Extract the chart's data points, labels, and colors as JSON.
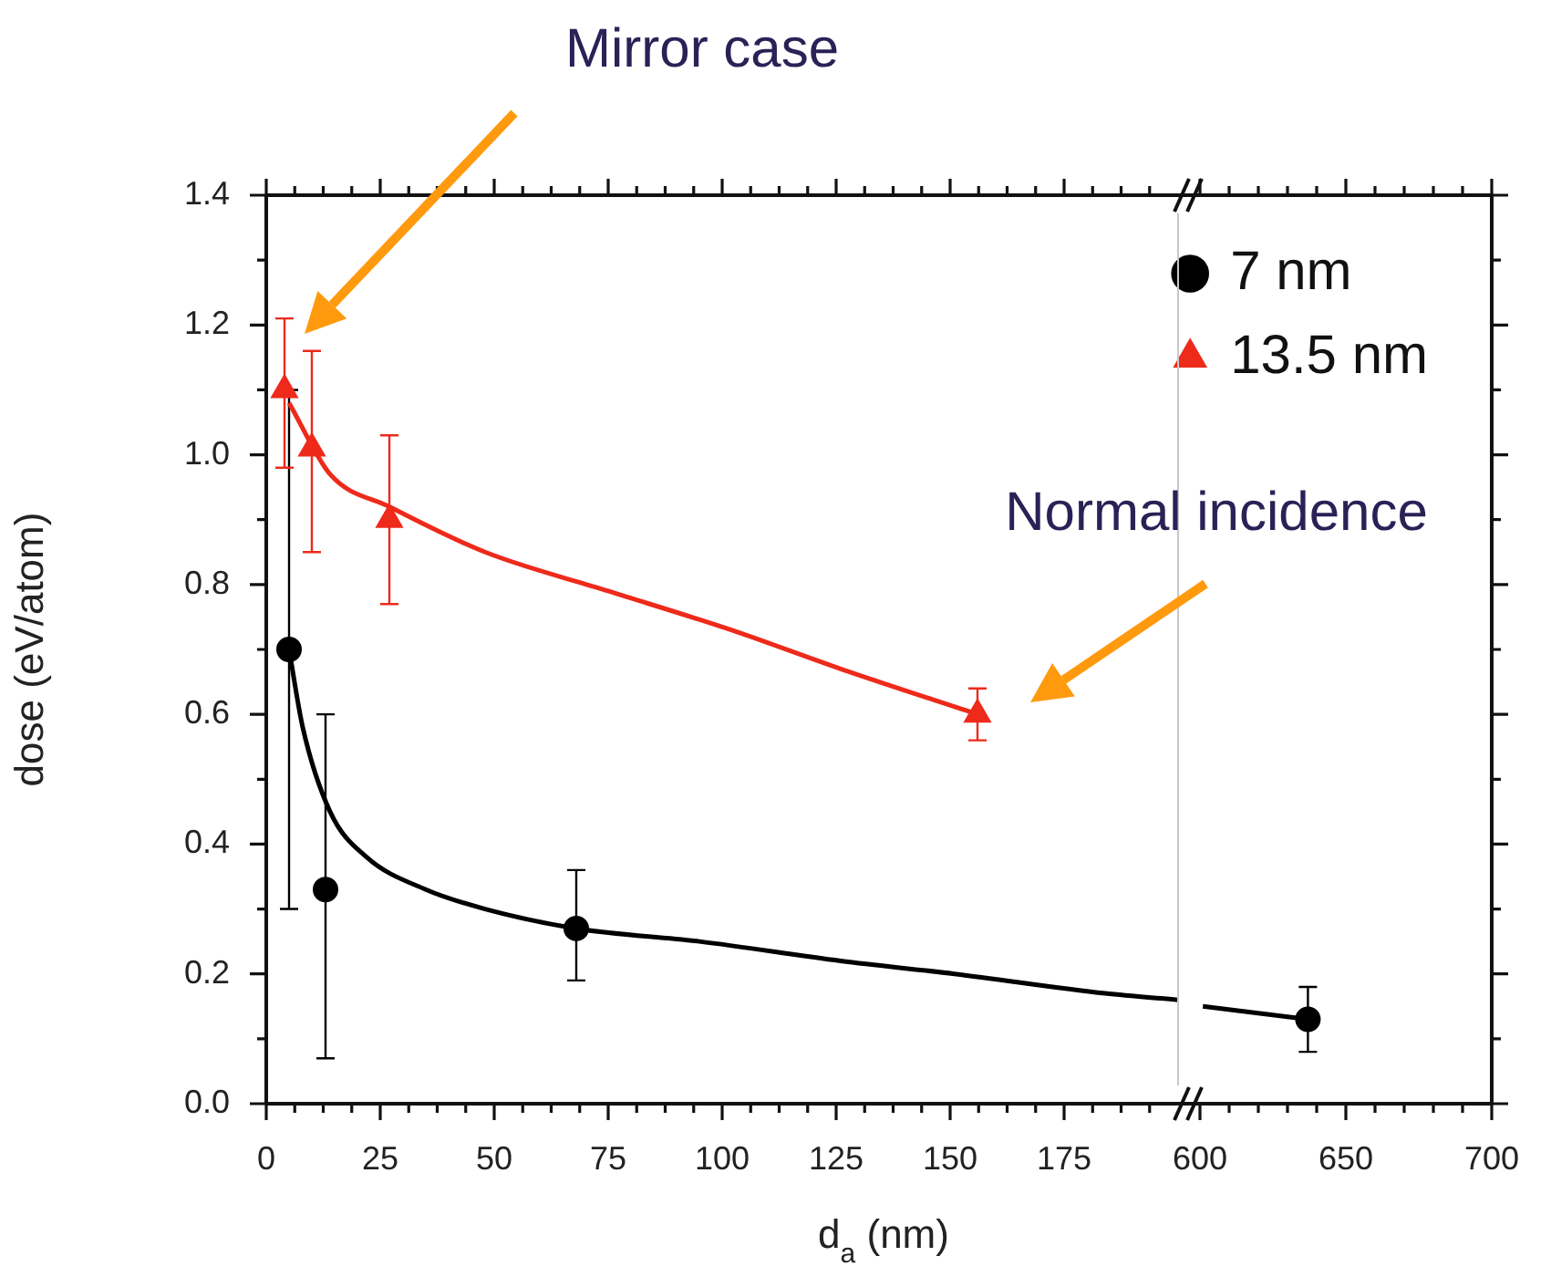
{
  "chart_data": [
    {
      "type": "scatter",
      "xlabel": "d$_{a}$ (nm)",
      "ylabel": "dose (eV/atom)",
      "legend": "top right",
      "xlim": [
        0,
        200
      ],
      "xticks": [
        0,
        {
          "value": 6.25,
          "label": null
        },
        {
          "value": 12.5,
          "label": null
        },
        {
          "value": 18.75,
          "label": null
        },
        25,
        {
          "value": 31.25,
          "label": null
        },
        {
          "value": 37.5,
          "label": null
        },
        {
          "value": 43.75,
          "label": null
        },
        50,
        {
          "value": 56.25,
          "label": null
        },
        {
          "value": 62.5,
          "label": null
        },
        {
          "value": 68.75,
          "label": null
        },
        75,
        {
          "value": 81.25,
          "label": null
        },
        {
          "value": 87.5,
          "label": null
        },
        {
          "value": 93.75,
          "label": null
        },
        100,
        {
          "value": 106.25,
          "label": null
        },
        {
          "value": 112.5,
          "label": null
        },
        {
          "value": 118.75,
          "label": null
        },
        125,
        {
          "value": 131.25,
          "label": null
        },
        {
          "value": 137.5,
          "label": null
        },
        {
          "value": 143.75,
          "label": null
        },
        150,
        {
          "value": 156.25,
          "label": null
        },
        {
          "value": 162.5,
          "label": null
        },
        {
          "value": 168.75,
          "label": null
        },
        175,
        {
          "value": 181.25,
          "label": null
        },
        {
          "value": 187.5,
          "label": null
        },
        {
          "value": 193.75,
          "label": null
        }
      ],
      "ylim": [
        0,
        1.4
      ],
      "yticks": [
        {
          "value": 0,
          "label": "0.0"
        },
        {
          "value": 0.1,
          "label": null
        },
        {
          "value": 0.2,
          "label": "0.2"
        },
        {
          "value": 0.3,
          "label": null
        },
        {
          "value": 0.4,
          "label": "0.4"
        },
        {
          "value": 0.5,
          "label": null
        },
        {
          "value": 0.6,
          "label": "0.6"
        },
        {
          "value": 0.7,
          "label": null
        },
        {
          "value": 0.8,
          "label": "0.8"
        },
        {
          "value": 0.9,
          "label": null
        },
        {
          "value": 1.0,
          "label": "1.0"
        },
        {
          "value": 1.1,
          "label": null
        },
        {
          "value": 1.2,
          "label": "1.2"
        },
        {
          "value": 1.3,
          "label": null
        },
        {
          "value": 1.4,
          "label": "1.4"
        }
      ],
      "series": [
        {
          "type": "line",
          "color": "#000000",
          "marker": "none",
          "x": [
            5,
            8,
            14,
            22,
            35,
            48,
            68,
            95,
            126,
            151,
            184,
            200
          ],
          "values": [
            0.7,
            0.58,
            0.45,
            0.38,
            0.33,
            0.3,
            0.27,
            0.25,
            0.22,
            0.2,
            0.17,
            0.16
          ]
        },
        {
          "type": "line",
          "color": "#ee2a1b",
          "marker": "none",
          "x": [
            5,
            14,
            27,
            48,
            75,
            102,
            126,
            156
          ],
          "values": [
            1.08,
            0.97,
            0.92,
            0.85,
            0.79,
            0.73,
            0.67,
            0.6
          ]
        },
        {
          "name": "7 nm",
          "type": "scatter",
          "color": "#000000",
          "marker": "circle",
          "x": [
            5,
            13,
            68
          ],
          "values": [
            0.7,
            0.33,
            0.27
          ],
          "errors": [
            [
              0.3,
              1.1
            ],
            [
              0.07,
              0.6
            ],
            [
              0.19,
              0.36
            ]
          ]
        },
        {
          "name": "13.5 nm",
          "type": "scatter",
          "color": "#ee2a1b",
          "marker": "triangle",
          "x": [
            4,
            10,
            27,
            156
          ],
          "values": [
            1.1,
            1.01,
            0.9,
            0.6
          ],
          "errors": [
            [
              0.98,
              1.21
            ],
            [
              0.85,
              1.16
            ],
            [
              0.77,
              1.03
            ],
            [
              0.56,
              0.64
            ]
          ]
        }
      ],
      "annotations": [
        "Mirror case",
        "Normal incidence"
      ]
    },
    {
      "type": "scatter",
      "tick_labels": "x",
      "xlim": [
        600,
        700
      ],
      "xticks": [
        600,
        {
          "value": 610,
          "label": null
        },
        {
          "value": 620,
          "label": null
        },
        {
          "value": 630,
          "label": null
        },
        {
          "value": 640,
          "label": null
        },
        650,
        {
          "value": 660,
          "label": null
        },
        {
          "value": 670,
          "label": null
        },
        {
          "value": 680,
          "label": null
        },
        {
          "value": 690,
          "label": null
        },
        700
      ],
      "ylim": [
        0,
        1.4
      ],
      "yticks": [
        0,
        {
          "value": 0.1,
          "label": null
        },
        0.2,
        {
          "value": 0.3,
          "label": null
        },
        0.4,
        {
          "value": 0.5,
          "label": null
        },
        0.6,
        {
          "value": 0.7,
          "label": null
        },
        0.8,
        {
          "value": 0.9,
          "label": null
        },
        1,
        {
          "value": 1.1,
          "label": null
        },
        1.2,
        {
          "value": 1.3,
          "label": null
        },
        1.4
      ],
      "series": [
        {
          "type": "line",
          "color": "#000000",
          "marker": "none",
          "x": [
            601,
            637
          ],
          "values": [
            0.15,
            0.13
          ]
        },
        {
          "type": "scatter",
          "color": "#000000",
          "marker": "circle",
          "x": [
            637
          ],
          "values": [
            0.13
          ],
          "errors": [
            [
              0.08,
              0.18
            ]
          ]
        }
      ]
    }
  ]
}
